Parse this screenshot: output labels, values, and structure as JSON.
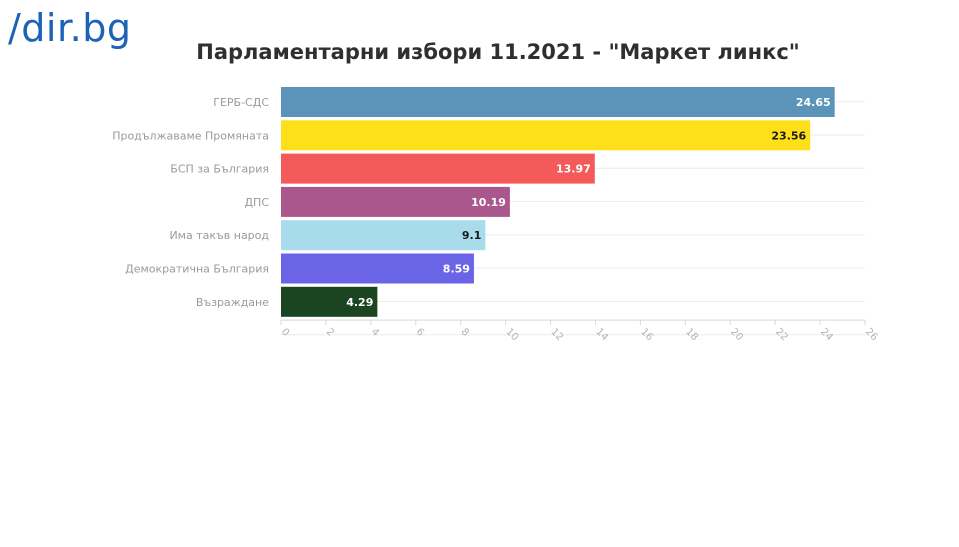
{
  "logo": "/dir.bg",
  "chart_data": {
    "type": "bar",
    "orientation": "horizontal",
    "title": "Парламентарни избори 11.2021 - \"Маркет линкс\"",
    "categories": [
      "ГЕРБ-СДС",
      "Продължаваме Промяната",
      "БСП за България",
      "ДПС",
      "Има такъв народ",
      "Демократична България",
      "Възраждане"
    ],
    "values": [
      24.65,
      23.56,
      13.97,
      10.19,
      9.1,
      8.59,
      4.29
    ],
    "colors": [
      "#5b94b8",
      "#fde01a",
      "#f55a5a",
      "#a9578c",
      "#a8dbeb",
      "#6a65e6",
      "#1b4520"
    ],
    "label_colors": [
      "#ffffff",
      "#1a1a1a",
      "#ffffff",
      "#ffffff",
      "#1a1a1a",
      "#ffffff",
      "#ffffff"
    ],
    "xlim": [
      0,
      26
    ],
    "xticks": [
      0,
      2,
      4,
      6,
      8,
      10,
      12,
      14,
      16,
      18,
      20,
      22,
      24,
      26
    ],
    "grid": true,
    "legend": "none"
  }
}
